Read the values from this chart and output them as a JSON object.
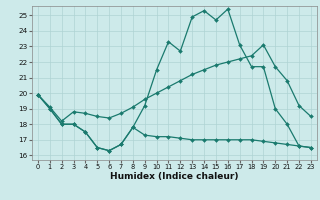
{
  "xlabel": "Humidex (Indice chaleur)",
  "xlim": [
    -0.5,
    23.5
  ],
  "ylim": [
    15.7,
    25.6
  ],
  "xticks": [
    0,
    1,
    2,
    3,
    4,
    5,
    6,
    7,
    8,
    9,
    10,
    11,
    12,
    13,
    14,
    15,
    16,
    17,
    18,
    19,
    20,
    21,
    22,
    23
  ],
  "yticks": [
    16,
    17,
    18,
    19,
    20,
    21,
    22,
    23,
    24,
    25
  ],
  "bg_color": "#cdeaea",
  "line_color": "#1a7a6e",
  "grid_color": "#afd4d4",
  "line1_y": [
    19.9,
    19.0,
    18.0,
    18.0,
    17.5,
    16.5,
    16.3,
    16.7,
    17.8,
    19.2,
    21.5,
    23.3,
    22.7,
    24.9,
    25.3,
    24.7,
    25.4,
    23.1,
    21.7,
    21.7,
    19.0,
    18.0,
    16.6,
    16.5
  ],
  "line2_y": [
    19.9,
    19.0,
    18.0,
    18.0,
    17.5,
    16.5,
    16.3,
    16.7,
    17.8,
    17.3,
    17.2,
    17.2,
    17.1,
    17.0,
    17.0,
    17.0,
    17.0,
    17.0,
    17.0,
    16.9,
    16.8,
    16.7,
    16.6,
    16.5
  ],
  "line3_y": [
    19.9,
    19.1,
    18.2,
    18.8,
    18.7,
    18.5,
    18.4,
    18.7,
    19.1,
    19.6,
    20.0,
    20.4,
    20.8,
    21.2,
    21.5,
    21.8,
    22.0,
    22.2,
    22.4,
    23.1,
    21.7,
    20.8,
    19.2,
    18.5
  ]
}
